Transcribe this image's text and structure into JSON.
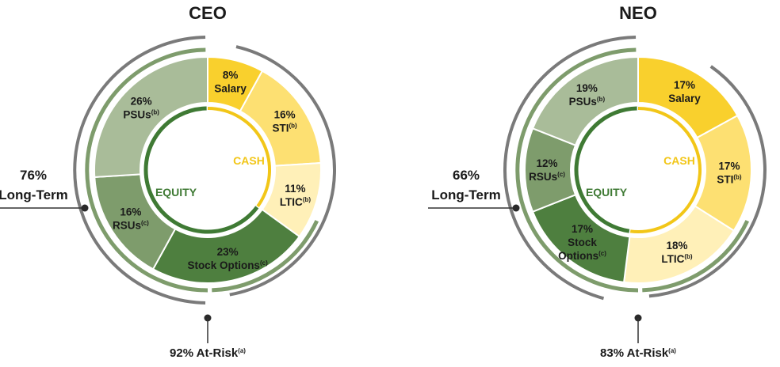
{
  "chart_data": [
    {
      "type": "pie",
      "title": "CEO",
      "center_labels": {
        "cash": "CASH",
        "equity": "EQUITY"
      },
      "segments": [
        {
          "pct": "8%",
          "name": "Salary",
          "sup": "",
          "value": 8,
          "group": "cash",
          "color": "#f9d02d"
        },
        {
          "pct": "16%",
          "name": "STI",
          "sup": "(b)",
          "value": 16,
          "group": "cash",
          "color": "#fde072"
        },
        {
          "pct": "11%",
          "name": "LTIC",
          "sup": "(b)",
          "value": 11,
          "group": "cash",
          "color": "#fff0b8"
        },
        {
          "pct": "23%",
          "name": "Stock Options",
          "sup": "(c)",
          "value": 23,
          "group": "equity",
          "color": "#4e7f3f"
        },
        {
          "pct": "16%",
          "name": "RSUs",
          "sup": "(c)",
          "value": 16,
          "group": "equity",
          "color": "#7e9c6c"
        },
        {
          "pct": "26%",
          "name": "PSUs",
          "sup": "(b)",
          "value": 26,
          "group": "equity",
          "color": "#a9bc99"
        }
      ],
      "long_term": {
        "pct": "76%",
        "label": "Long-Term"
      },
      "at_risk": {
        "text": "92% At-Risk",
        "sup": "(a)"
      }
    },
    {
      "type": "pie",
      "title": "NEO",
      "center_labels": {
        "cash": "CASH",
        "equity": "EQUITY"
      },
      "segments": [
        {
          "pct": "17%",
          "name": "Salary",
          "sup": "",
          "value": 17,
          "group": "cash",
          "color": "#f9d02d"
        },
        {
          "pct": "17%",
          "name": "STI",
          "sup": "(b)",
          "value": 17,
          "group": "cash",
          "color": "#fde072"
        },
        {
          "pct": "18%",
          "name": "LTIC",
          "sup": "(b)",
          "value": 18,
          "group": "cash",
          "color": "#fff0b8"
        },
        {
          "pct": "17%",
          "name": "Stock Options",
          "sup": "(c)",
          "value": 17,
          "group": "equity",
          "color": "#4e7f3f"
        },
        {
          "pct": "12%",
          "name": "RSUs",
          "sup": "(c)",
          "value": 12,
          "group": "equity",
          "color": "#7e9c6c"
        },
        {
          "pct": "19%",
          "name": "PSUs",
          "sup": "(b)",
          "value": 19,
          "group": "equity",
          "color": "#a9bc99"
        }
      ],
      "long_term": {
        "pct": "66%",
        "label": "Long-Term"
      },
      "at_risk": {
        "text": "83% At-Risk",
        "sup": "(a)"
      }
    }
  ]
}
